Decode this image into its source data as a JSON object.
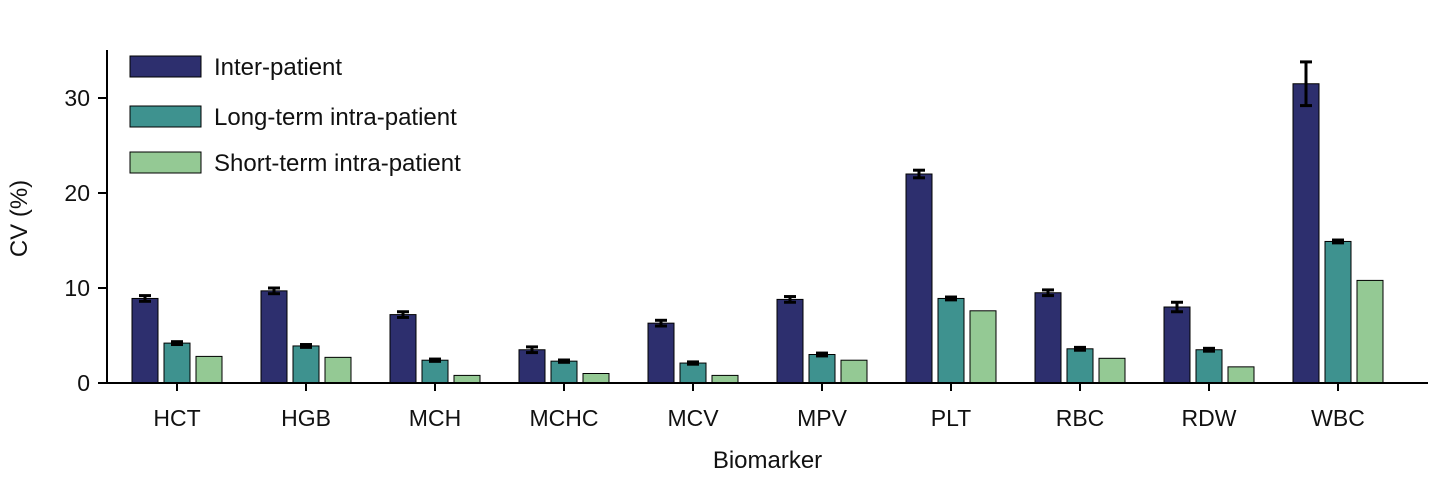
{
  "chart_data": {
    "type": "bar",
    "title": "",
    "xlabel": "Biomarker",
    "ylabel": "CV (%)",
    "ylim": [
      0,
      35
    ],
    "yticks": [
      0,
      10,
      20,
      30
    ],
    "categories": [
      "HCT",
      "HGB",
      "MCH",
      "MCHC",
      "MCV",
      "MPV",
      "PLT",
      "RBC",
      "RDW",
      "WBC"
    ],
    "legend_position": "top-left",
    "grid": false,
    "series": [
      {
        "name": "Inter-patient",
        "color": "#2d2f6e",
        "values": [
          8.9,
          9.7,
          7.2,
          3.5,
          6.3,
          8.8,
          22.0,
          9.5,
          8.0,
          31.5
        ],
        "errors": [
          0.3,
          0.3,
          0.3,
          0.3,
          0.3,
          0.3,
          0.4,
          0.3,
          0.5,
          2.3
        ]
      },
      {
        "name": "Long-term intra-patient",
        "color": "#3e928f",
        "values": [
          4.2,
          3.9,
          2.4,
          2.3,
          2.1,
          3.0,
          8.9,
          3.6,
          3.5,
          14.9
        ],
        "errors": [
          0.15,
          0.15,
          0.12,
          0.12,
          0.12,
          0.15,
          0.15,
          0.15,
          0.15,
          0.15
        ]
      },
      {
        "name": "Short-term intra-patient",
        "color": "#94c994",
        "values": [
          2.8,
          2.7,
          0.8,
          1.0,
          0.8,
          2.4,
          7.6,
          2.6,
          1.7,
          10.8
        ],
        "errors": [
          0,
          0,
          0,
          0,
          0,
          0,
          0,
          0,
          0,
          0
        ]
      }
    ]
  }
}
